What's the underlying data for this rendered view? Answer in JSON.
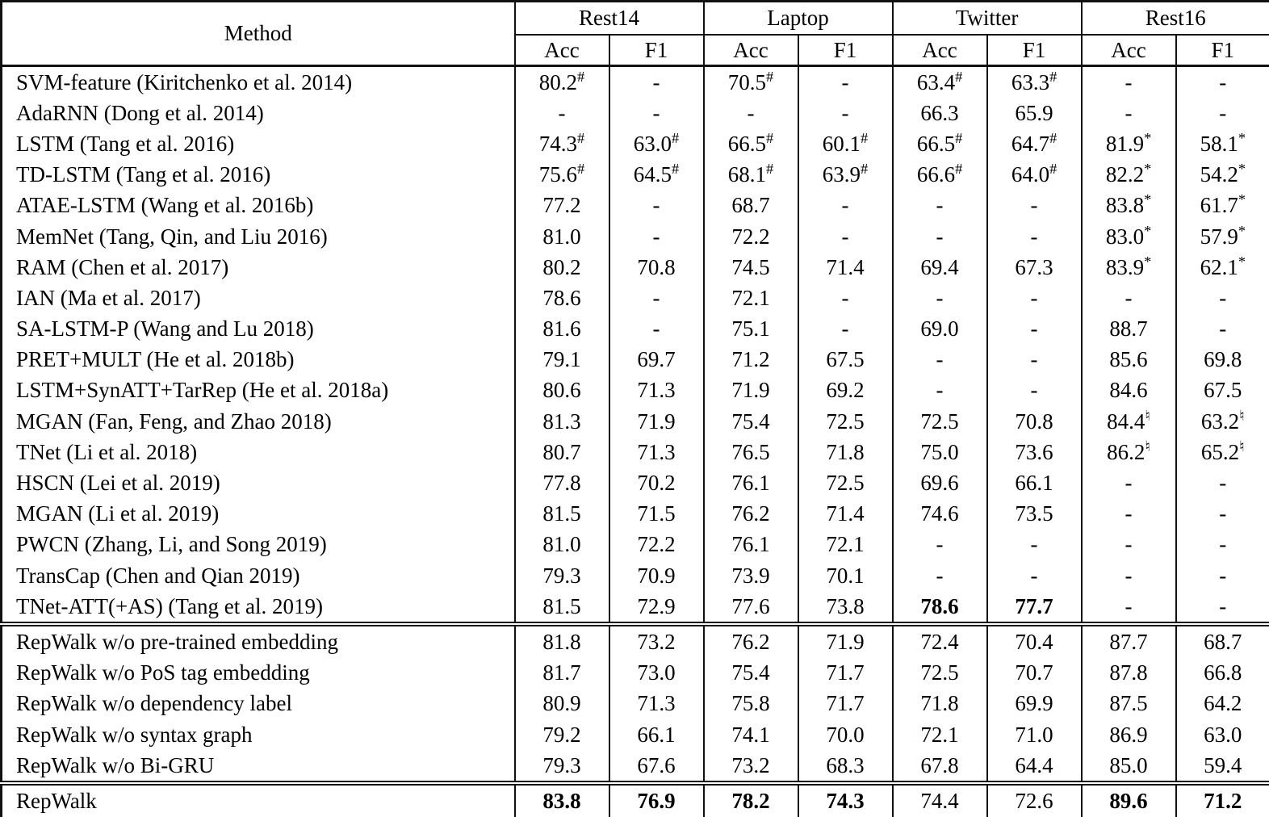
{
  "table": {
    "method_header": "Method",
    "groups": [
      "Rest14",
      "Laptop",
      "Twitter",
      "Rest16"
    ],
    "sub_columns": [
      "Acc",
      "F1",
      "Acc",
      "F1",
      "Acc",
      "F1",
      "Acc",
      "F1"
    ],
    "sections": [
      {
        "name": "baselines",
        "rows": [
          {
            "method": "SVM-feature (Kiritchenko et al. 2014)",
            "values": [
              {
                "v": "80.2",
                "sup": "#"
              },
              "-",
              {
                "v": "70.5",
                "sup": "#"
              },
              "-",
              {
                "v": "63.4",
                "sup": "#"
              },
              {
                "v": "63.3",
                "sup": "#"
              },
              "-",
              "-"
            ]
          },
          {
            "method": "AdaRNN (Dong et al. 2014)",
            "values": [
              "-",
              "-",
              "-",
              "-",
              "66.3",
              "65.9",
              "-",
              "-"
            ]
          },
          {
            "method": "LSTM (Tang et al. 2016)",
            "values": [
              {
                "v": "74.3",
                "sup": "#"
              },
              {
                "v": "63.0",
                "sup": "#"
              },
              {
                "v": "66.5",
                "sup": "#"
              },
              {
                "v": "60.1",
                "sup": "#"
              },
              {
                "v": "66.5",
                "sup": "#"
              },
              {
                "v": "64.7",
                "sup": "#"
              },
              {
                "v": "81.9",
                "sup": "*"
              },
              {
                "v": "58.1",
                "sup": "*"
              }
            ]
          },
          {
            "method": "TD-LSTM (Tang et al. 2016)",
            "values": [
              {
                "v": "75.6",
                "sup": "#"
              },
              {
                "v": "64.5",
                "sup": "#"
              },
              {
                "v": "68.1",
                "sup": "#"
              },
              {
                "v": "63.9",
                "sup": "#"
              },
              {
                "v": "66.6",
                "sup": "#"
              },
              {
                "v": "64.0",
                "sup": "#"
              },
              {
                "v": "82.2",
                "sup": "*"
              },
              {
                "v": "54.2",
                "sup": "*"
              }
            ]
          },
          {
            "method": "ATAE-LSTM (Wang et al. 2016b)",
            "values": [
              "77.2",
              "-",
              "68.7",
              "-",
              "-",
              "-",
              {
                "v": "83.8",
                "sup": "*"
              },
              {
                "v": "61.7",
                "sup": "*"
              }
            ]
          },
          {
            "method": "MemNet (Tang, Qin, and Liu 2016)",
            "values": [
              "81.0",
              "-",
              "72.2",
              "-",
              "-",
              "-",
              {
                "v": "83.0",
                "sup": "*"
              },
              {
                "v": "57.9",
                "sup": "*"
              }
            ]
          },
          {
            "method": "RAM (Chen et al. 2017)",
            "values": [
              "80.2",
              "70.8",
              "74.5",
              "71.4",
              "69.4",
              "67.3",
              {
                "v": "83.9",
                "sup": "*"
              },
              {
                "v": "62.1",
                "sup": "*"
              }
            ]
          },
          {
            "method": "IAN (Ma et al. 2017)",
            "values": [
              "78.6",
              "-",
              "72.1",
              "-",
              "-",
              "-",
              "-",
              "-"
            ]
          },
          {
            "method": "SA-LSTM-P (Wang and Lu 2018)",
            "values": [
              "81.6",
              "-",
              "75.1",
              "-",
              "69.0",
              "-",
              "88.7",
              "-"
            ]
          },
          {
            "method": "PRET+MULT (He et al. 2018b)",
            "values": [
              "79.1",
              "69.7",
              "71.2",
              "67.5",
              "-",
              "-",
              "85.6",
              "69.8"
            ]
          },
          {
            "method": "LSTM+SynATT+TarRep (He et al. 2018a)",
            "values": [
              "80.6",
              "71.3",
              "71.9",
              "69.2",
              "-",
              "-",
              "84.6",
              "67.5"
            ]
          },
          {
            "method": "MGAN (Fan, Feng, and Zhao 2018)",
            "values": [
              "81.3",
              "71.9",
              "75.4",
              "72.5",
              "72.5",
              "70.8",
              {
                "v": "84.4",
                "sup": "♮"
              },
              {
                "v": "63.2",
                "sup": "♮"
              }
            ]
          },
          {
            "method": "TNet (Li et al. 2018)",
            "values": [
              "80.7",
              "71.3",
              "76.5",
              "71.8",
              "75.0",
              "73.6",
              {
                "v": "86.2",
                "sup": "♮"
              },
              {
                "v": "65.2",
                "sup": "♮"
              }
            ]
          },
          {
            "method": "HSCN (Lei et al. 2019)",
            "values": [
              "77.8",
              "70.2",
              "76.1",
              "72.5",
              "69.6",
              "66.1",
              "-",
              "-"
            ]
          },
          {
            "method": "MGAN (Li et al. 2019)",
            "values": [
              "81.5",
              "71.5",
              "76.2",
              "71.4",
              "74.6",
              "73.5",
              "-",
              "-"
            ]
          },
          {
            "method": "PWCN (Zhang, Li, and Song 2019)",
            "values": [
              "81.0",
              "72.2",
              "76.1",
              "72.1",
              "-",
              "-",
              "-",
              "-"
            ]
          },
          {
            "method": "TransCap (Chen and Qian 2019)",
            "values": [
              "79.3",
              "70.9",
              "73.9",
              "70.1",
              "-",
              "-",
              "-",
              "-"
            ]
          },
          {
            "method": "TNet-ATT(+AS) (Tang et al. 2019)",
            "values": [
              "81.5",
              "72.9",
              "77.6",
              "73.8",
              {
                "v": "78.6",
                "bold": true
              },
              {
                "v": "77.7",
                "bold": true
              },
              "-",
              "-"
            ]
          }
        ]
      },
      {
        "name": "ablations",
        "rows": [
          {
            "method": "RepWalk w/o pre-trained embedding",
            "values": [
              "81.8",
              "73.2",
              "76.2",
              "71.9",
              "72.4",
              "70.4",
              "87.7",
              "68.7"
            ]
          },
          {
            "method": "RepWalk w/o PoS tag embedding",
            "values": [
              "81.7",
              "73.0",
              "75.4",
              "71.7",
              "72.5",
              "70.7",
              "87.8",
              "66.8"
            ]
          },
          {
            "method": "RepWalk w/o dependency label",
            "values": [
              "80.9",
              "71.3",
              "75.8",
              "71.7",
              "71.8",
              "69.9",
              "87.5",
              "64.2"
            ]
          },
          {
            "method": "RepWalk w/o syntax graph",
            "values": [
              "79.2",
              "66.1",
              "74.1",
              "70.0",
              "72.1",
              "71.0",
              "86.9",
              "63.0"
            ]
          },
          {
            "method": "RepWalk w/o Bi-GRU",
            "values": [
              "79.3",
              "67.6",
              "73.2",
              "68.3",
              "67.8",
              "64.4",
              "85.0",
              "59.4"
            ]
          }
        ]
      },
      {
        "name": "full-model",
        "rows": [
          {
            "method": "RepWalk",
            "values": [
              {
                "v": "83.8",
                "bold": true
              },
              {
                "v": "76.9",
                "bold": true
              },
              {
                "v": "78.2",
                "bold": true
              },
              {
                "v": "74.3",
                "bold": true
              },
              "74.4",
              "72.6",
              {
                "v": "89.6",
                "bold": true
              },
              {
                "v": "71.2",
                "bold": true
              }
            ]
          }
        ]
      }
    ]
  }
}
